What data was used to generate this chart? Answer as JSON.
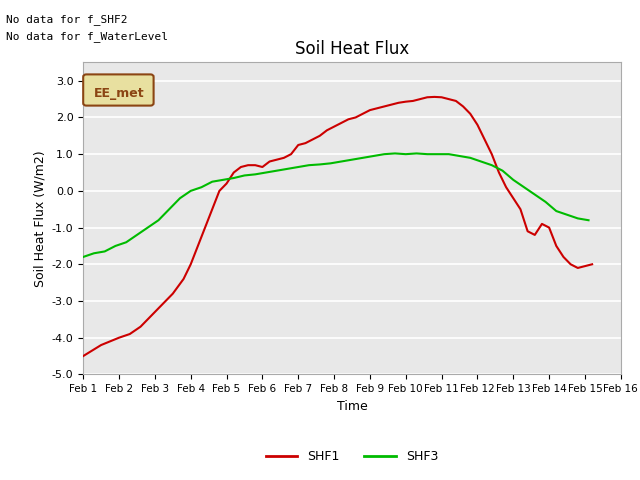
{
  "title": "Soil Heat Flux",
  "xlabel": "Time",
  "ylabel": "Soil Heat Flux (W/m2)",
  "ylim": [
    -5.0,
    3.5
  ],
  "yticks": [
    -5.0,
    -4.0,
    -3.0,
    -2.0,
    -1.0,
    0.0,
    1.0,
    2.0,
    3.0
  ],
  "x_labels": [
    "Feb 1",
    "Feb 2",
    "Feb 3",
    "Feb 4",
    "Feb 5",
    "Feb 6",
    "Feb 7",
    "Feb 8",
    "Feb 9",
    "Feb 10",
    "Feb 11",
    "Feb 12",
    "Feb 13",
    "Feb 14",
    "Feb 15",
    "Feb 16"
  ],
  "note_line1": "No data for f_SHF2",
  "note_line2": "No data for f_WaterLevel",
  "legend_box_label": "EE_met",
  "legend_box_bg": "#e8e0a0",
  "legend_box_border": "#8b4513",
  "fig_bg": "#ffffff",
  "plot_bg": "#e8e8e8",
  "grid_color": "#ffffff",
  "shf1_color": "#cc0000",
  "shf3_color": "#00bb00",
  "shf1_label": "SHF1",
  "shf3_label": "SHF3",
  "shf1_x": [
    1,
    1.5,
    2,
    2.3,
    2.6,
    2.9,
    3.2,
    3.5,
    3.8,
    4.0,
    4.2,
    4.4,
    4.6,
    4.8,
    5.0,
    5.2,
    5.4,
    5.6,
    5.8,
    6.0,
    6.2,
    6.4,
    6.6,
    6.8,
    7.0,
    7.2,
    7.4,
    7.6,
    7.8,
    8.0,
    8.2,
    8.4,
    8.6,
    8.8,
    9.0,
    9.2,
    9.4,
    9.6,
    9.8,
    10.0,
    10.2,
    10.4,
    10.6,
    10.8,
    11.0,
    11.2,
    11.4,
    11.6,
    11.8,
    12.0,
    12.2,
    12.4,
    12.6,
    12.8,
    13.0,
    13.2,
    13.4,
    13.6,
    13.8,
    14.0,
    14.2,
    14.4,
    14.6,
    14.8,
    15.0,
    15.2
  ],
  "shf1_y": [
    -4.5,
    -4.2,
    -4.0,
    -3.9,
    -3.7,
    -3.4,
    -3.1,
    -2.8,
    -2.4,
    -2.0,
    -1.5,
    -1.0,
    -0.5,
    0.0,
    0.2,
    0.5,
    0.65,
    0.7,
    0.7,
    0.65,
    0.8,
    0.85,
    0.9,
    1.0,
    1.25,
    1.3,
    1.4,
    1.5,
    1.65,
    1.75,
    1.85,
    1.95,
    2.0,
    2.1,
    2.2,
    2.25,
    2.3,
    2.35,
    2.4,
    2.43,
    2.45,
    2.5,
    2.55,
    2.56,
    2.55,
    2.5,
    2.45,
    2.3,
    2.1,
    1.8,
    1.4,
    1.0,
    0.5,
    0.1,
    -0.2,
    -0.5,
    -1.1,
    -1.2,
    -0.9,
    -1.0,
    -1.5,
    -1.8,
    -2.0,
    -2.1,
    -2.05,
    -2.0
  ],
  "shf3_x": [
    1,
    1.3,
    1.6,
    1.9,
    2.2,
    2.5,
    2.8,
    3.1,
    3.4,
    3.7,
    4.0,
    4.3,
    4.6,
    4.9,
    5.2,
    5.5,
    5.8,
    6.1,
    6.4,
    6.7,
    7.0,
    7.3,
    7.6,
    7.9,
    8.2,
    8.5,
    8.8,
    9.1,
    9.4,
    9.7,
    10.0,
    10.3,
    10.6,
    10.9,
    11.2,
    11.5,
    11.8,
    12.1,
    12.4,
    12.7,
    13.0,
    13.3,
    13.6,
    13.9,
    14.2,
    14.5,
    14.8,
    15.1
  ],
  "shf3_y": [
    -1.8,
    -1.7,
    -1.65,
    -1.5,
    -1.4,
    -1.2,
    -1.0,
    -0.8,
    -0.5,
    -0.2,
    0.0,
    0.1,
    0.25,
    0.3,
    0.35,
    0.42,
    0.45,
    0.5,
    0.55,
    0.6,
    0.65,
    0.7,
    0.72,
    0.75,
    0.8,
    0.85,
    0.9,
    0.95,
    1.0,
    1.02,
    1.0,
    1.02,
    1.0,
    1.0,
    1.0,
    0.95,
    0.9,
    0.8,
    0.7,
    0.55,
    0.3,
    0.1,
    -0.1,
    -0.3,
    -0.55,
    -0.65,
    -0.75,
    -0.8
  ]
}
